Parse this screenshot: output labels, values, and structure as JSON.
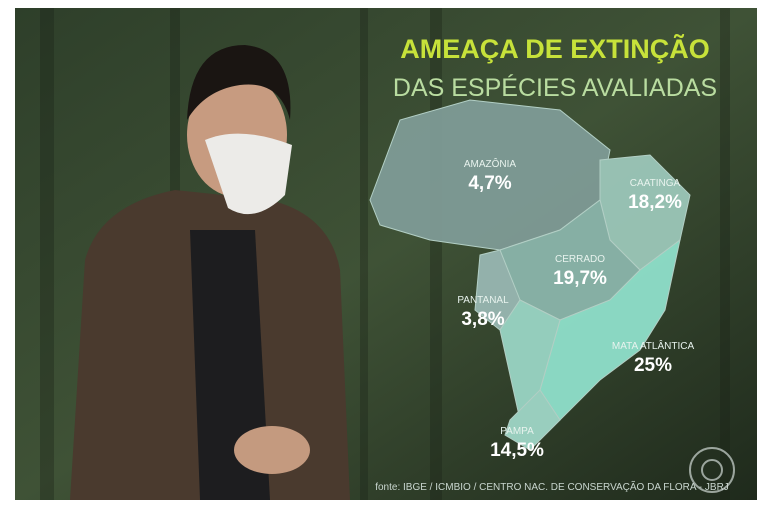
{
  "header": {
    "title": "AMEAÇA DE EXTINÇÃO",
    "subtitle": "DAS ESPÉCIES AVALIADAS"
  },
  "regions": [
    {
      "name": "AMAZÔNIA",
      "value": "4,7%"
    },
    {
      "name": "CAATINGA",
      "value": "18,2%"
    },
    {
      "name": "CERRADO",
      "value": "19,7%"
    },
    {
      "name": "PANTANAL",
      "value": "3,8%"
    },
    {
      "name": "MATA ATLÂNTICA",
      "value": "25%"
    },
    {
      "name": "PAMPA",
      "value": "14,5%"
    }
  ],
  "source": "fonte: IBGE / ICMBIO / CENTRO NAC. DE CONSERVAÇÃO DA FLORA - JBRJ"
}
